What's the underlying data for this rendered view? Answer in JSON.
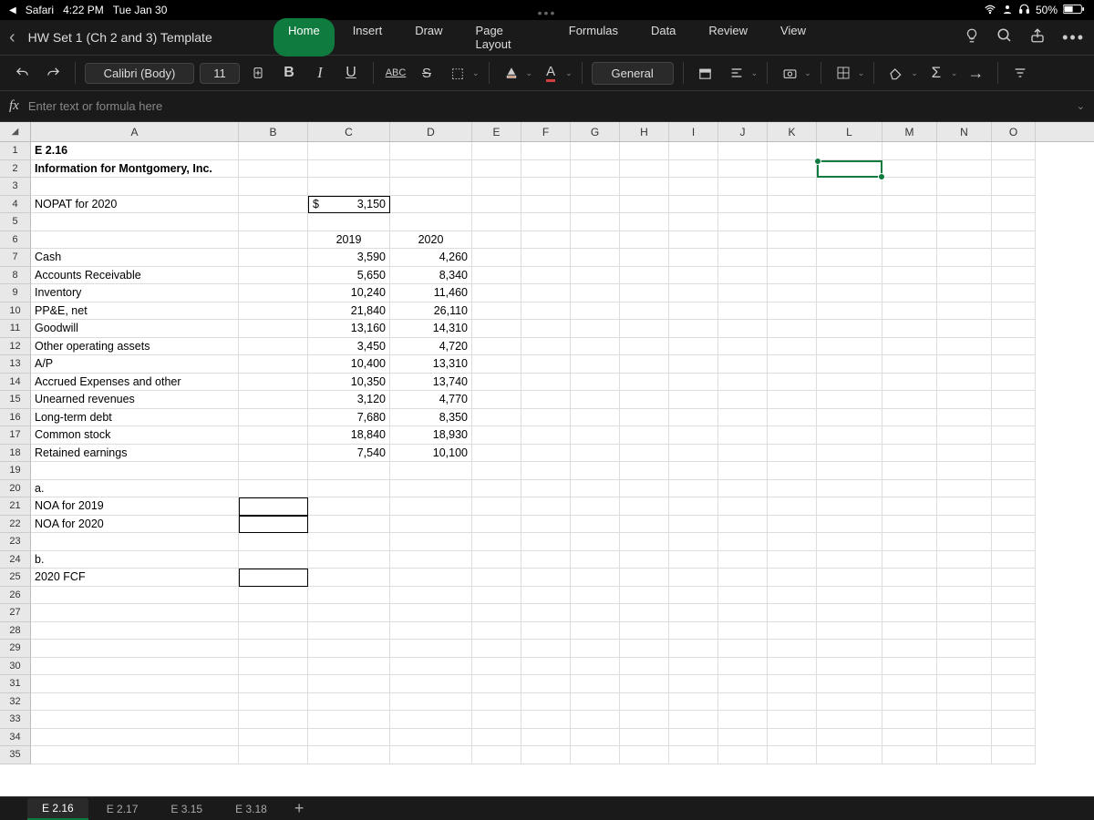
{
  "status": {
    "app": "Safari",
    "time": "4:22 PM",
    "date": "Tue Jan 30",
    "battery": "50%"
  },
  "doc": {
    "title": "HW Set 1 (Ch 2 and 3) Template"
  },
  "ribbon": {
    "tabs": [
      "Home",
      "Insert",
      "Draw",
      "Page Layout",
      "Formulas",
      "Data",
      "Review",
      "View"
    ],
    "active": "Home"
  },
  "toolbar": {
    "font": "Calibri (Body)",
    "size": "11",
    "numfmt": "General",
    "abc": "ABC"
  },
  "formula": {
    "placeholder": "Enter text or formula here"
  },
  "columns": [
    "A",
    "B",
    "C",
    "D",
    "E",
    "F",
    "G",
    "H",
    "I",
    "J",
    "K",
    "L",
    "M",
    "N",
    "O"
  ],
  "rows": [
    {
      "n": 1,
      "A": "E 2.16",
      "bold": true
    },
    {
      "n": 2,
      "A": "Information for Montgomery, Inc.",
      "bold": true
    },
    {
      "n": 3
    },
    {
      "n": 4,
      "A": "NOPAT for 2020",
      "C_prefix": "$",
      "C": "3,150",
      "boxC": true
    },
    {
      "n": 5
    },
    {
      "n": 6,
      "C": "2019",
      "D": "2020",
      "centerCD": true
    },
    {
      "n": 7,
      "A": "Cash",
      "C": "3,590",
      "D": "4,260"
    },
    {
      "n": 8,
      "A": "Accounts Receivable",
      "C": "5,650",
      "D": "8,340"
    },
    {
      "n": 9,
      "A": "Inventory",
      "C": "10,240",
      "D": "11,460"
    },
    {
      "n": 10,
      "A": "PP&E, net",
      "C": "21,840",
      "D": "26,110"
    },
    {
      "n": 11,
      "A": "Goodwill",
      "C": "13,160",
      "D": "14,310"
    },
    {
      "n": 12,
      "A": "Other operating assets",
      "C": "3,450",
      "D": "4,720"
    },
    {
      "n": 13,
      "A": "A/P",
      "C": "10,400",
      "D": "13,310"
    },
    {
      "n": 14,
      "A": "Accrued Expenses and other",
      "C": "10,350",
      "D": "13,740"
    },
    {
      "n": 15,
      "A": "Unearned revenues",
      "C": "3,120",
      "D": "4,770"
    },
    {
      "n": 16,
      "A": "Long-term debt",
      "C": "7,680",
      "D": "8,350"
    },
    {
      "n": 17,
      "A": "Common stock",
      "C": "18,840",
      "D": "18,930"
    },
    {
      "n": 18,
      "A": "Retained earnings",
      "C": "7,540",
      "D": "10,100"
    },
    {
      "n": 19
    },
    {
      "n": 20,
      "A": "a."
    },
    {
      "n": 21,
      "A": "NOA for 2019",
      "boxB": true
    },
    {
      "n": 22,
      "A": "NOA for 2020",
      "boxB": true
    },
    {
      "n": 23
    },
    {
      "n": 24,
      "A": "b."
    },
    {
      "n": 25,
      "A": "2020 FCF",
      "boxB": true
    },
    {
      "n": 26
    },
    {
      "n": 27
    },
    {
      "n": 28
    },
    {
      "n": 29
    },
    {
      "n": 30
    },
    {
      "n": 31
    },
    {
      "n": 32
    },
    {
      "n": 33
    },
    {
      "n": 34
    },
    {
      "n": 35
    }
  ],
  "sheetTabs": {
    "tabs": [
      "E 2.16",
      "E 2.17",
      "E 3.15",
      "E 3.18"
    ],
    "active": "E 2.16"
  },
  "selection": {
    "row": 2,
    "col": "L"
  }
}
